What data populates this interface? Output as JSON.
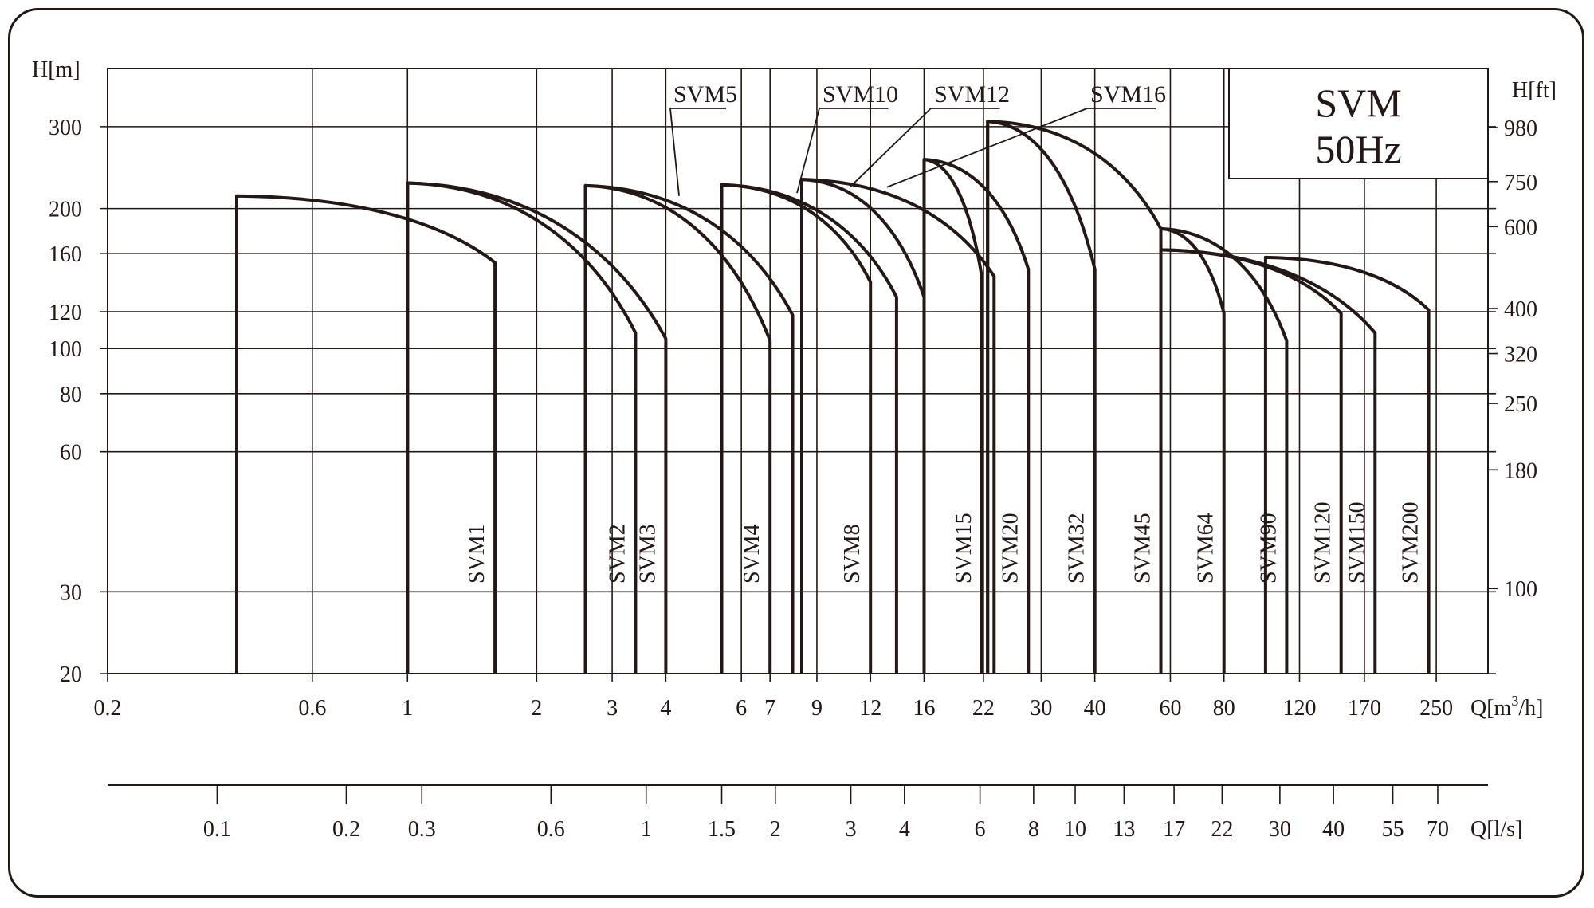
{
  "chart_data": {
    "type": "line",
    "title": "SVM",
    "subtitle": "50Hz",
    "y_left_label": "H[m]",
    "y_right_label": "H[ft]",
    "x_label_prefix": "Q[m",
    "x_label_sup": "3",
    "x_label_suffix": "/h]",
    "x2_label": "Q[l/s]",
    "x_scale": "log",
    "y_scale": "log",
    "xlim": [
      0.2,
      330
    ],
    "ylim": [
      20,
      400
    ],
    "x_ticks": [
      {
        "v": 0.2,
        "label": "0.2"
      },
      {
        "v": 0.6,
        "label": "0.6"
      },
      {
        "v": 1,
        "label": "1"
      },
      {
        "v": 2,
        "label": "2"
      },
      {
        "v": 3,
        "label": "3"
      },
      {
        "v": 4,
        "label": "4"
      },
      {
        "v": 6,
        "label": "6"
      },
      {
        "v": 7,
        "label": "7"
      },
      {
        "v": 9,
        "label": "9"
      },
      {
        "v": 12,
        "label": "12"
      },
      {
        "v": 16,
        "label": "16"
      },
      {
        "v": 22,
        "label": "22"
      },
      {
        "v": 30,
        "label": "30"
      },
      {
        "v": 40,
        "label": "40"
      },
      {
        "v": 60,
        "label": "60"
      },
      {
        "v": 80,
        "label": "80"
      },
      {
        "v": 120,
        "label": "120"
      },
      {
        "v": 170,
        "label": "170"
      },
      {
        "v": 250,
        "label": "250"
      }
    ],
    "x2_ticks": [
      {
        "v": 0.1,
        "label": "0.1"
      },
      {
        "v": 0.2,
        "label": "0.2"
      },
      {
        "v": 0.3,
        "label": "0.3"
      },
      {
        "v": 0.6,
        "label": "0.6"
      },
      {
        "v": 1,
        "label": "1"
      },
      {
        "v": 1.5,
        "label": "1.5"
      },
      {
        "v": 2,
        "label": "2"
      },
      {
        "v": 3,
        "label": "3"
      },
      {
        "v": 4,
        "label": "4"
      },
      {
        "v": 6,
        "label": "6"
      },
      {
        "v": 8,
        "label": "8"
      },
      {
        "v": 10,
        "label": "10"
      },
      {
        "v": 13,
        "label": "13"
      },
      {
        "v": 17,
        "label": "17"
      },
      {
        "v": 22,
        "label": "22"
      },
      {
        "v": 30,
        "label": "30"
      },
      {
        "v": 40,
        "label": "40"
      },
      {
        "v": 55,
        "label": "55"
      },
      {
        "v": 70,
        "label": "70"
      }
    ],
    "y_ticks": [
      {
        "v": 20,
        "label": "20"
      },
      {
        "v": 30,
        "label": "30"
      },
      {
        "v": 60,
        "label": "60"
      },
      {
        "v": 80,
        "label": "80"
      },
      {
        "v": 100,
        "label": "100"
      },
      {
        "v": 120,
        "label": "120"
      },
      {
        "v": 160,
        "label": "160"
      },
      {
        "v": 200,
        "label": "200"
      },
      {
        "v": 300,
        "label": "300"
      }
    ],
    "y_right_ticks": [
      {
        "ft": 100,
        "label": "100"
      },
      {
        "ft": 180,
        "label": "180"
      },
      {
        "ft": 250,
        "label": "250"
      },
      {
        "ft": 320,
        "label": "320"
      },
      {
        "ft": 400,
        "label": "400"
      },
      {
        "ft": 600,
        "label": "600"
      },
      {
        "ft": 750,
        "label": "750"
      },
      {
        "ft": 980,
        "label": "980"
      }
    ],
    "grid": true,
    "series": [
      {
        "name": "SVM1",
        "q_min": 0.4,
        "q_max": 1.6,
        "h_max": 213,
        "h_min": 153,
        "label_type": "vertical"
      },
      {
        "name": "SVM2",
        "q_min": 1.0,
        "q_max": 3.4,
        "h_max": 227,
        "h_min": 108,
        "label_type": "vertical"
      },
      {
        "name": "SVM3",
        "q_min": 1.0,
        "q_max": 4.0,
        "h_max": 227,
        "h_min": 105,
        "label_type": "vertical"
      },
      {
        "name": "SVM4",
        "q_min": 2.6,
        "q_max": 7.0,
        "h_max": 224,
        "h_min": 104,
        "label_type": "vertical"
      },
      {
        "name": "SVM5",
        "q_min": 2.6,
        "q_max": 7.9,
        "h_max": 224,
        "h_min": 118,
        "label_type": "top"
      },
      {
        "name": "SVM8",
        "q_min": 5.4,
        "q_max": 12.0,
        "h_max": 225,
        "h_min": 139,
        "label_type": "vertical"
      },
      {
        "name": "SVM10",
        "q_min": 5.4,
        "q_max": 13.8,
        "h_max": 225,
        "h_min": 129,
        "label_type": "top"
      },
      {
        "name": "SVM12",
        "q_min": 8.3,
        "q_max": 16.0,
        "h_max": 231,
        "h_min": 129,
        "label_type": "top"
      },
      {
        "name": "SVM15",
        "q_min": 16.0,
        "q_max": 21.8,
        "h_max": 255,
        "h_min": 143,
        "label_type": "vertical"
      },
      {
        "name": "SVM16",
        "q_min": 8.3,
        "q_max": 23.3,
        "h_max": 231,
        "h_min": 143,
        "label_type": "top"
      },
      {
        "name": "SVM20",
        "q_min": 16.0,
        "q_max": 28.0,
        "h_max": 255,
        "h_min": 148,
        "label_type": "vertical"
      },
      {
        "name": "SVM32",
        "q_min": 22.5,
        "q_max": 40.0,
        "h_max": 308,
        "h_min": 148,
        "label_type": "vertical"
      },
      {
        "name": "SVM45",
        "q_min": 22.5,
        "q_max": 57.0,
        "h_max": 308,
        "h_min": 181,
        "label_type": "vertical"
      },
      {
        "name": "SVM64",
        "q_min": 57.0,
        "q_max": 80.0,
        "h_max": 181,
        "h_min": 119,
        "label_type": "vertical"
      },
      {
        "name": "SVM90",
        "q_min": 57.0,
        "q_max": 112.0,
        "h_max": 181,
        "h_min": 104,
        "label_type": "vertical"
      },
      {
        "name": "SVM120",
        "q_min": 57.0,
        "q_max": 150.0,
        "h_max": 163,
        "h_min": 119,
        "label_type": "vertical"
      },
      {
        "name": "SVM150",
        "q_min": 57.0,
        "q_max": 180.0,
        "h_max": 163,
        "h_min": 108,
        "label_type": "vertical"
      },
      {
        "name": "SVM200",
        "q_min": 100.0,
        "q_max": 240.0,
        "h_max": 157,
        "h_min": 121,
        "label_type": "vertical"
      }
    ]
  }
}
